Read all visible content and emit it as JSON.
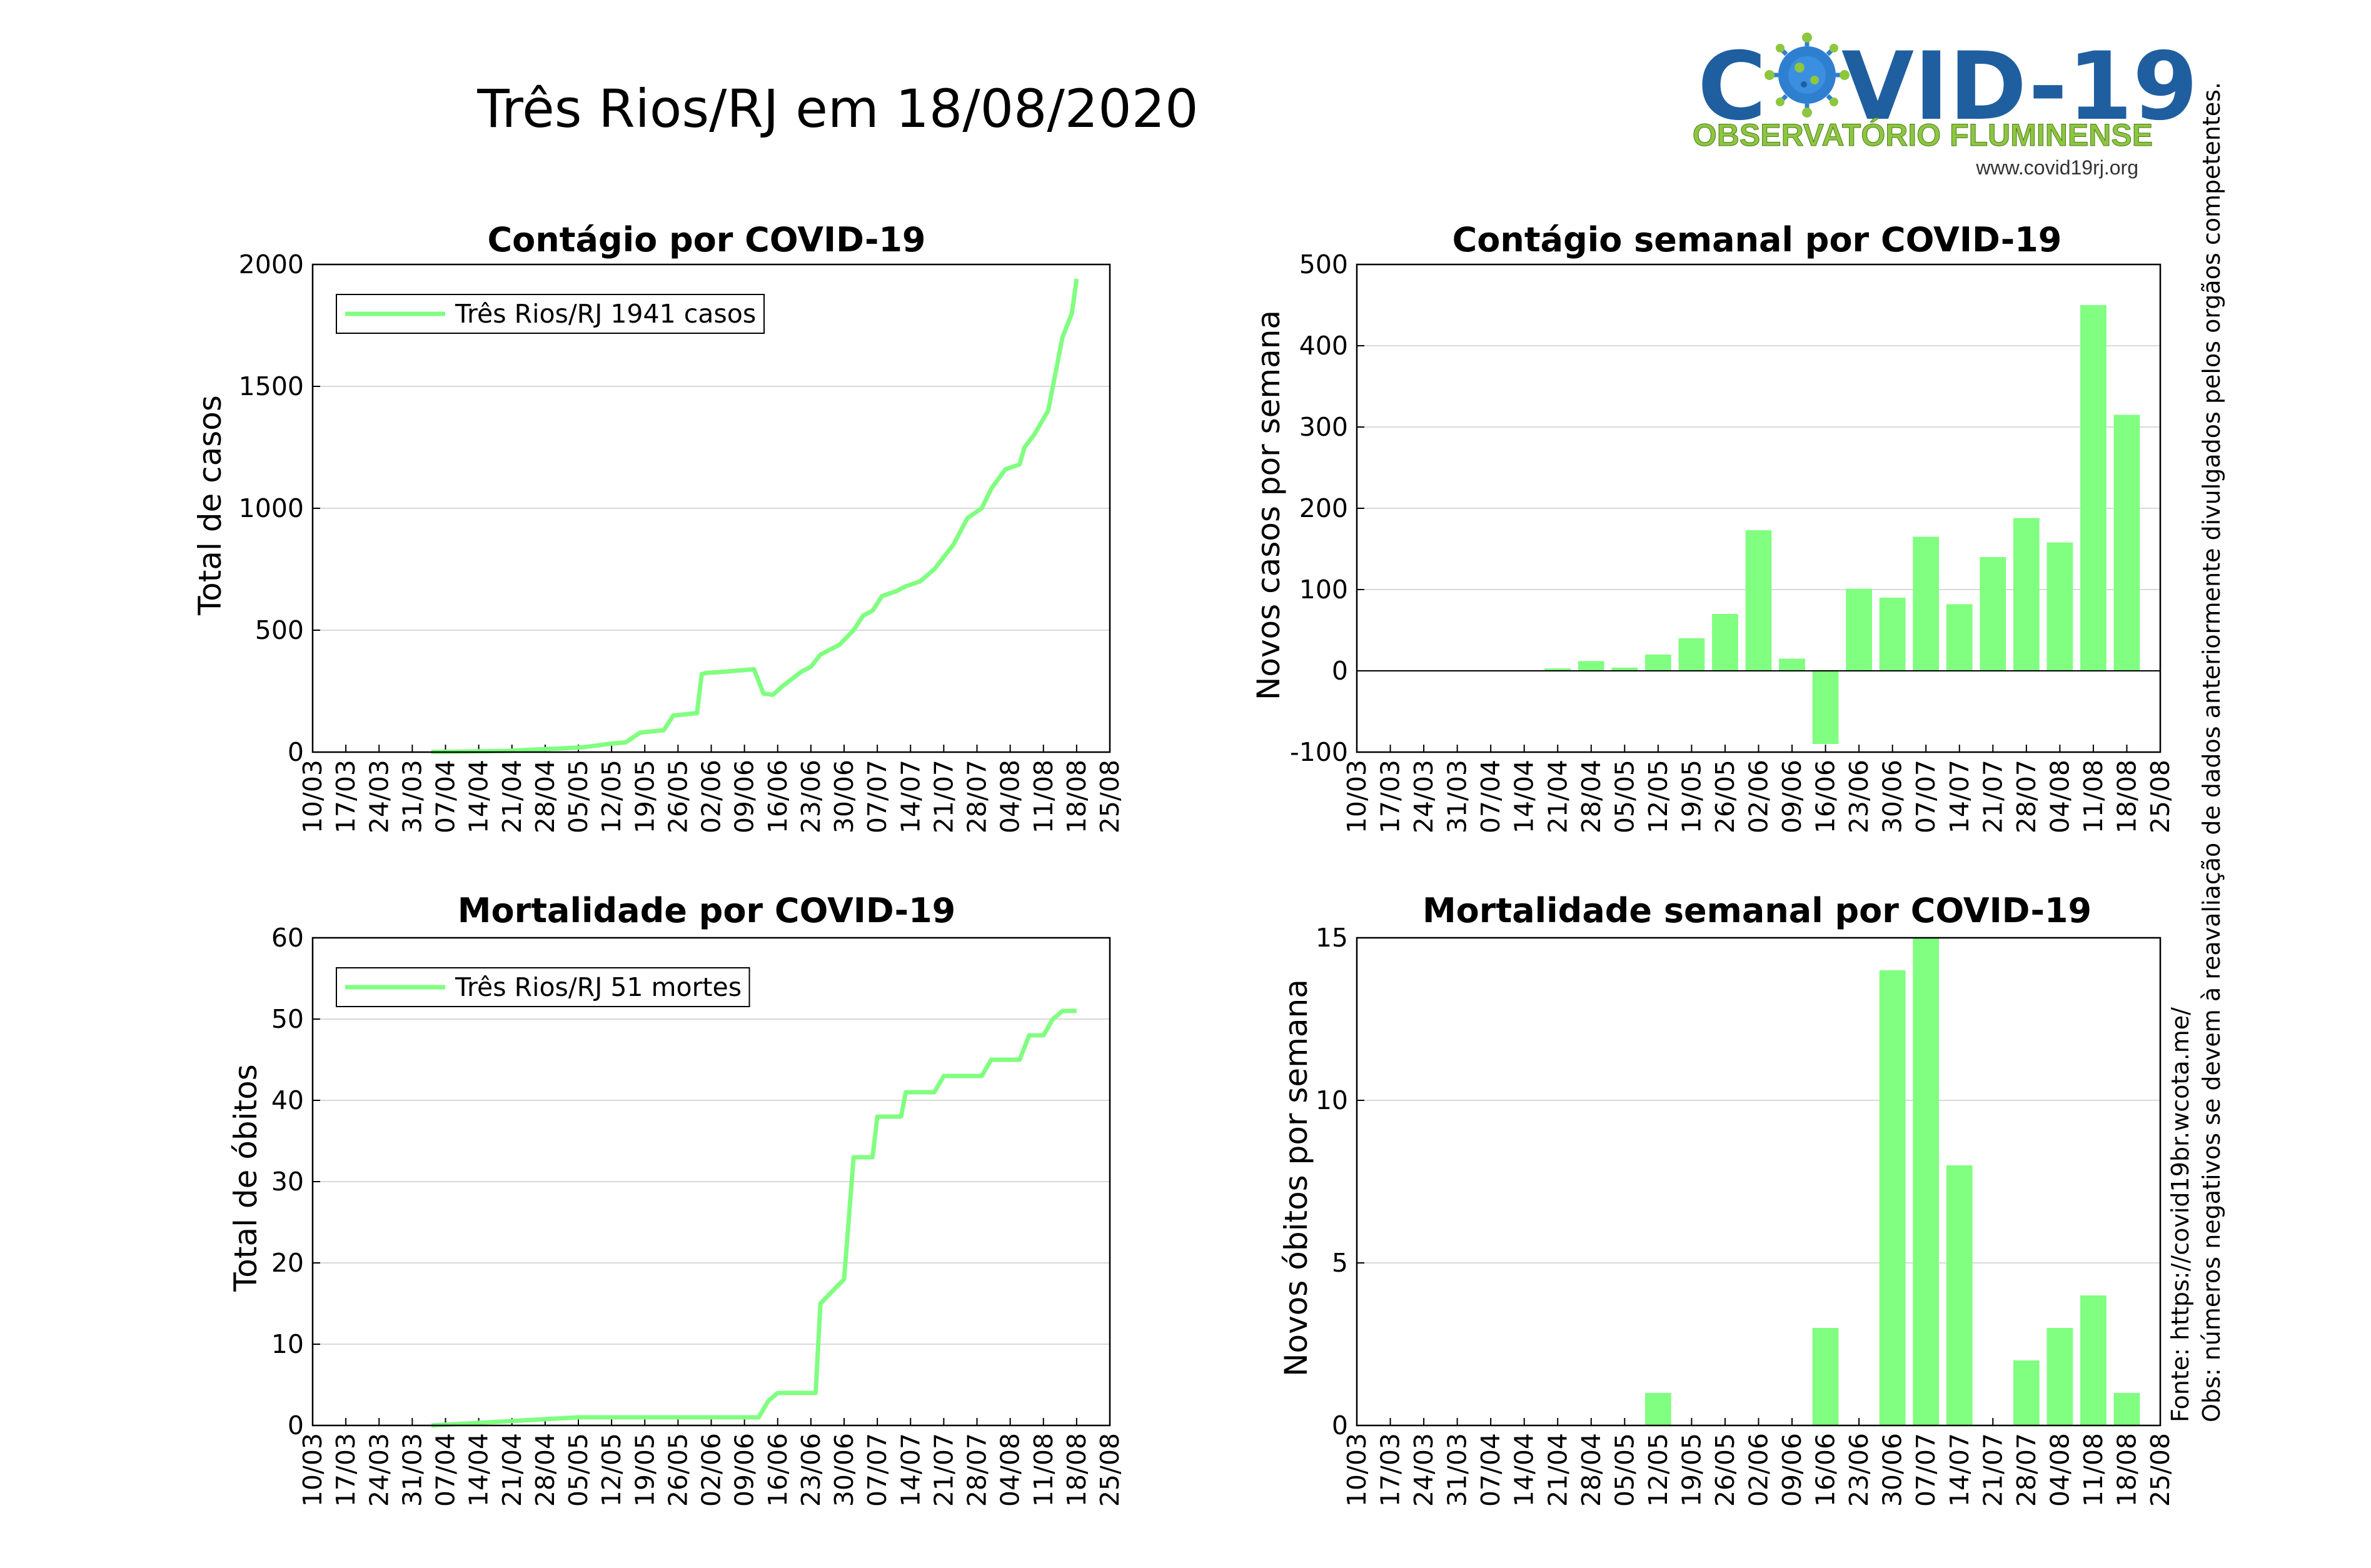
{
  "title": "Três Rios/RJ em 18/08/2020",
  "logo": {
    "text_left": "C",
    "text_right": "VID-19",
    "subtitle": "OBSERVATÓRIO FLUMINENSE",
    "url": "www.covid19rj.org",
    "colors": {
      "blue": "#1f5fa0",
      "green": "#8dc63f",
      "virus": "#2f7fd0"
    }
  },
  "side_notes": {
    "source": "Fonte: https://covid19br.wcota.me/",
    "note": "Obs: números negativos se devem à reavaliação de dados anteriormente divulgados pelos orgãos competentes."
  },
  "colors": {
    "series": "#80ff80",
    "axis": "#000000",
    "grid": "#d9d9d9"
  },
  "dates": [
    "10/03",
    "17/03",
    "24/03",
    "31/03",
    "07/04",
    "14/04",
    "21/04",
    "28/04",
    "05/05",
    "12/05",
    "19/05",
    "26/05",
    "02/06",
    "09/06",
    "16/06",
    "23/06",
    "30/06",
    "07/07",
    "14/07",
    "21/07",
    "28/07",
    "04/08",
    "11/08",
    "18/08",
    "25/08"
  ],
  "chart_data": [
    {
      "id": "cases",
      "type": "line",
      "title": "Contágio por COVID-19",
      "xlabel": "",
      "ylabel": "Total de casos",
      "ylim": [
        0,
        2000
      ],
      "yticks": [
        0,
        500,
        1000,
        1500,
        2000
      ],
      "grid": true,
      "legend": {
        "position": "top-left",
        "entries": [
          "Três Rios/RJ  1941 casos"
        ]
      },
      "series": [
        {
          "name": "Três Rios/RJ",
          "x": [
            "04/04",
            "10/04",
            "20/04",
            "01/05",
            "06/05",
            "08/05",
            "12/05",
            "15/05",
            "18/05",
            "23/05",
            "25/05",
            "30/05",
            "31/05",
            "01/06",
            "05/06",
            "11/06",
            "13/06",
            "15/06",
            "17/06",
            "19/06",
            "21/06",
            "23/06",
            "25/06",
            "27/06",
            "29/06",
            "02/07",
            "04/07",
            "06/07",
            "08/07",
            "11/07",
            "13/07",
            "16/07",
            "19/07",
            "23/07",
            "26/07",
            "29/07",
            "31/07",
            "03/08",
            "06/08",
            "07/08",
            "09/08",
            "12/08",
            "14/08",
            "15/08",
            "17/08",
            "18/08"
          ],
          "y": [
            1,
            2,
            5,
            15,
            20,
            25,
            35,
            40,
            80,
            90,
            150,
            160,
            320,
            325,
            330,
            340,
            240,
            235,
            270,
            300,
            330,
            350,
            400,
            420,
            440,
            500,
            560,
            580,
            640,
            660,
            680,
            700,
            750,
            850,
            960,
            1000,
            1080,
            1160,
            1180,
            1250,
            1300,
            1400,
            1600,
            1700,
            1800,
            1941
          ]
        }
      ]
    },
    {
      "id": "weekly-cases",
      "type": "bar",
      "title": "Contágio semanal por COVID-19",
      "xlabel": "",
      "ylabel": "Novos casos por semana",
      "ylim": [
        -100,
        500
      ],
      "yticks": [
        -100,
        0,
        100,
        200,
        300,
        400,
        500
      ],
      "grid": true,
      "categories": [
        "21/04",
        "28/04",
        "05/05",
        "12/05",
        "19/05",
        "26/05",
        "02/06",
        "09/06",
        "16/06",
        "23/06",
        "30/06",
        "07/07",
        "14/07",
        "21/07",
        "28/07",
        "04/08",
        "11/08",
        "18/08"
      ],
      "series": [
        {
          "values": [
            3,
            12,
            4,
            20,
            40,
            70,
            173,
            15,
            -90,
            101,
            90,
            165,
            82,
            140,
            188,
            158,
            450,
            315
          ]
        }
      ]
    },
    {
      "id": "deaths",
      "type": "line",
      "title": "Mortalidade por COVID-19",
      "xlabel": "",
      "ylabel": "Total de óbitos",
      "ylim": [
        0,
        60
      ],
      "yticks": [
        0,
        10,
        20,
        30,
        40,
        50,
        60
      ],
      "grid": true,
      "legend": {
        "position": "top-left",
        "entries": [
          "Três Rios/RJ  51 mortes"
        ]
      },
      "series": [
        {
          "name": "Três Rios/RJ",
          "x": [
            "04/04",
            "05/05",
            "12/06",
            "14/06",
            "16/06",
            "24/06",
            "25/06",
            "30/06",
            "02/07",
            "06/07",
            "07/07",
            "12/07",
            "13/07",
            "19/07",
            "21/07",
            "29/07",
            "31/07",
            "06/08",
            "08/08",
            "11/08",
            "13/08",
            "15/08",
            "18/08"
          ],
          "y": [
            0,
            1,
            1,
            3,
            4,
            4,
            15,
            18,
            33,
            33,
            38,
            38,
            41,
            41,
            43,
            43,
            45,
            45,
            48,
            48,
            50,
            51,
            51
          ]
        }
      ]
    },
    {
      "id": "weekly-deaths",
      "type": "bar",
      "title": "Mortalidade semanal por COVID-19",
      "xlabel": "",
      "ylabel": "Novos óbitos por semana",
      "ylim": [
        0,
        15
      ],
      "yticks": [
        0,
        5,
        10,
        15
      ],
      "grid": true,
      "categories": [
        "12/05",
        "16/06",
        "30/06",
        "07/07",
        "14/07",
        "28/07",
        "04/08",
        "11/08",
        "18/08"
      ],
      "series": [
        {
          "values": [
            1,
            3,
            14,
            15,
            8,
            2,
            3,
            4,
            1
          ]
        }
      ]
    }
  ]
}
